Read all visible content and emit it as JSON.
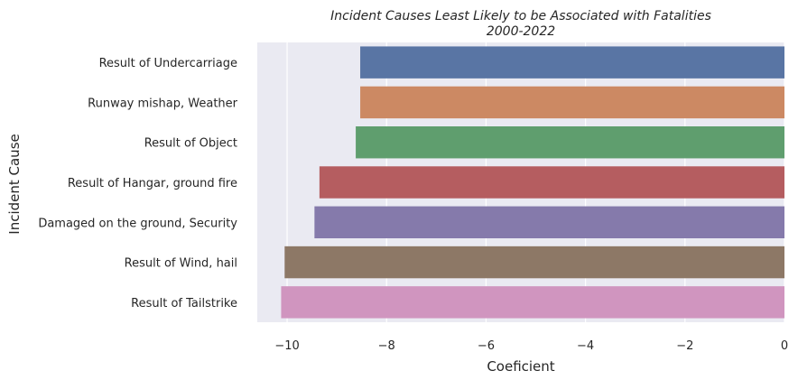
{
  "chart_data": {
    "type": "bar",
    "orientation": "horizontal",
    "title": "Incident Causes Least Likely to be Associated with Fatalities",
    "subtitle": "2000-2022",
    "xlabel": "Coeficient",
    "ylabel": "Incident Cause",
    "xlim": [
      -10.6,
      0
    ],
    "xticks": [
      -10,
      -8,
      -6,
      -4,
      -2,
      0
    ],
    "xtick_labels": [
      "−10",
      "−8",
      "−6",
      "−4",
      "−2",
      "0"
    ],
    "grid": true,
    "categories": [
      "Result of Undercarriage",
      "Runway mishap, Weather",
      "Result of Object",
      "Result of Hangar, ground fire",
      "Damaged on the ground, Security",
      "Result of Wind, hail",
      "Result of Tailstrike"
    ],
    "values": [
      -8.53,
      -8.53,
      -8.62,
      -9.35,
      -9.45,
      -10.05,
      -10.12
    ],
    "colors": [
      "#5975a4",
      "#cc8963",
      "#5f9e6e",
      "#b55d60",
      "#857aab",
      "#8d7866",
      "#d095bf"
    ],
    "background_color": "#eaeaf2"
  }
}
